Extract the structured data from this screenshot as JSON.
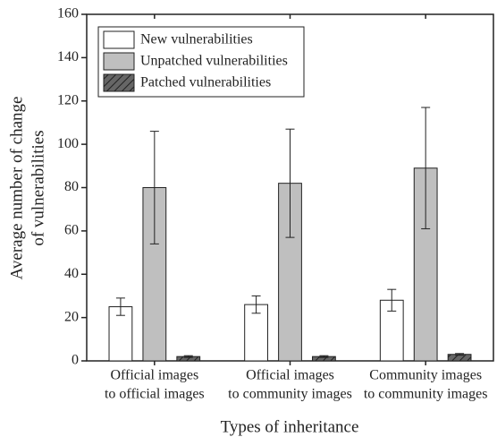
{
  "chart_data": {
    "type": "bar",
    "xlabel": "Types of inheritance",
    "ylabel": [
      "Average number of change",
      "of vulnerabilities"
    ],
    "categories": [
      [
        "Official images",
        "to official images"
      ],
      [
        "Official images",
        "to community images"
      ],
      [
        "Community images",
        "to community images"
      ]
    ],
    "series": [
      {
        "name": "New vulnerabilities",
        "color": "#ffffff",
        "values": [
          25,
          26,
          28
        ],
        "errors": [
          4,
          4,
          5
        ]
      },
      {
        "name": "Unpatched vulnerabilities",
        "color": "#bfbfbf",
        "values": [
          80,
          82,
          89
        ],
        "errors": [
          26,
          25,
          28
        ]
      },
      {
        "name": "Patched vulnerabilities",
        "color": "#666666",
        "hatch": true,
        "values": [
          2,
          2,
          3
        ],
        "errors": [
          0.4,
          0.4,
          0.4
        ]
      }
    ],
    "ylim": [
      0,
      160
    ],
    "yticks": [
      0,
      20,
      40,
      60,
      80,
      100,
      120,
      140,
      160
    ],
    "legend": "upper left"
  }
}
